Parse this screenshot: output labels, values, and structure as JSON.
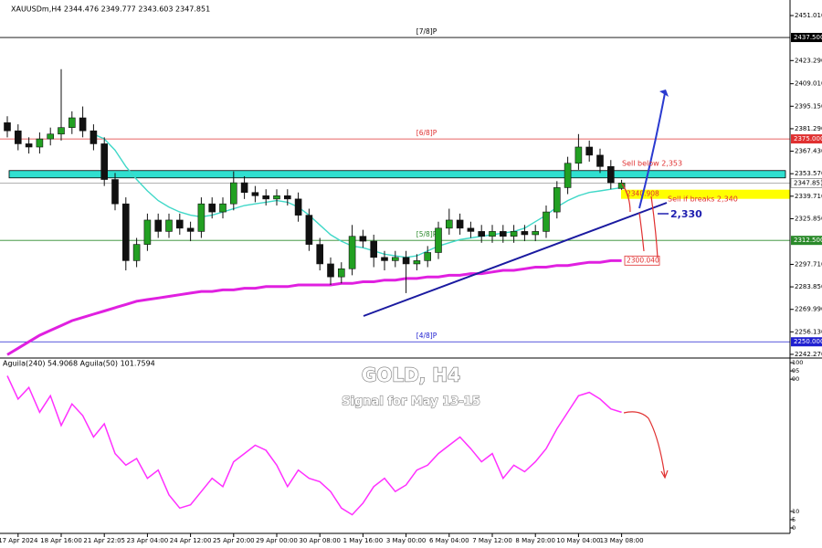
{
  "chart_data": {
    "type": "candlestick",
    "header": "XAUUSDm,H4  2344.476 2349.777 2343.603 2347.851",
    "title": "GOLD, H4",
    "subtitle": "Signal for May 13-15",
    "categories": [
      null,
      "17 Apr 2024",
      null,
      null,
      null,
      "18 Apr 16:00",
      null,
      null,
      null,
      "21 Apr 22:05",
      null,
      null,
      null,
      "23 Apr 04:00",
      null,
      null,
      null,
      "24 Apr 12:00",
      null,
      null,
      null,
      "25 Apr 20:00",
      null,
      null,
      null,
      "29 Apr 00:00",
      null,
      null,
      null,
      "30 Apr 08:00",
      null,
      null,
      null,
      "1 May 16:00",
      null,
      null,
      null,
      "3 May 00:00",
      null,
      null,
      null,
      "6 May 04:00",
      null,
      null,
      null,
      "7 May 12:00",
      null,
      null,
      null,
      "8 May 20:00",
      null,
      null,
      null,
      "10 May 04:00",
      null,
      null,
      null,
      "13 May 08:00"
    ],
    "open": [
      2385,
      2380,
      2372,
      2370,
      2375,
      2378,
      2382,
      2388,
      2380,
      2372,
      2350,
      2335,
      2300,
      2310,
      2325,
      2318,
      2325,
      2320,
      2318,
      2335,
      2330,
      2335,
      2348,
      2342,
      2340,
      2338,
      2340,
      2338,
      2328,
      2310,
      2298,
      2290,
      2295,
      2315,
      2312,
      2302,
      2300,
      2302,
      2298,
      2300,
      2305,
      2320,
      2325,
      2320,
      2318,
      2315,
      2318,
      2315,
      2318,
      2316,
      2318,
      2330,
      2345,
      2360,
      2370,
      2365,
      2358,
      2344.476
    ],
    "high": [
      2389,
      2384,
      2376,
      2379,
      2382,
      2418,
      2392,
      2395,
      2384,
      2376,
      2354,
      2339,
      2314,
      2329,
      2329,
      2329,
      2329,
      2324,
      2339,
      2339,
      2339,
      2355,
      2352,
      2346,
      2344,
      2344,
      2344,
      2342,
      2332,
      2314,
      2302,
      2299,
      2322,
      2319,
      2316,
      2306,
      2306,
      2306,
      2304,
      2309,
      2324,
      2332,
      2329,
      2324,
      2322,
      2322,
      2322,
      2322,
      2322,
      2322,
      2334,
      2349,
      2364,
      2378,
      2374,
      2369,
      2362,
      2349.777
    ],
    "low": [
      2376,
      2368,
      2366,
      2366,
      2371,
      2374,
      2378,
      2376,
      2368,
      2346,
      2331,
      2294,
      2296,
      2306,
      2314,
      2314,
      2316,
      2312,
      2314,
      2326,
      2326,
      2331,
      2338,
      2336,
      2334,
      2334,
      2334,
      2324,
      2306,
      2294,
      2285,
      2286,
      2291,
      2308,
      2296,
      2294,
      2296,
      2280,
      2294,
      2296,
      2301,
      2316,
      2316,
      2314,
      2311,
      2311,
      2311,
      2311,
      2312,
      2312,
      2314,
      2326,
      2341,
      2356,
      2361,
      2354,
      2344,
      2343.603
    ],
    "close": [
      2380,
      2372,
      2370,
      2375,
      2378,
      2382,
      2388,
      2380,
      2372,
      2350,
      2335,
      2300,
      2310,
      2325,
      2318,
      2325,
      2320,
      2318,
      2335,
      2330,
      2335,
      2348,
      2342,
      2340,
      2338,
      2340,
      2338,
      2328,
      2310,
      2298,
      2290,
      2295,
      2315,
      2312,
      2302,
      2300,
      2302,
      2298,
      2300,
      2305,
      2320,
      2325,
      2320,
      2318,
      2315,
      2318,
      2315,
      2318,
      2316,
      2318,
      2330,
      2345,
      2360,
      2370,
      2365,
      2358,
      2348,
      2347.851
    ],
    "up_color": "#22a022",
    "down_color": "#111111",
    "ma_lines": [
      {
        "color": "#40d8c8",
        "values": [
          null,
          null,
          null,
          null,
          null,
          null,
          null,
          null,
          2378,
          2375,
          2368,
          2358,
          2350,
          2343,
          2337,
          2333,
          2330,
          2328,
          2327,
          2328,
          2330,
          2332,
          2334,
          2335,
          2336,
          2337,
          2336,
          2333,
          2328,
          2322,
          2316,
          2312,
          2309,
          2308,
          2306,
          2304,
          2303,
          2302,
          2303,
          2306,
          2309,
          2311,
          2313,
          2314,
          2315,
          2316,
          2317,
          2318,
          2320,
          2324,
          2328,
          2333,
          2337,
          2340,
          2342,
          2343,
          2344,
          2345
        ]
      },
      {
        "color": "#e020e0",
        "values": [
          2242,
          2246,
          2250,
          2254,
          2257,
          2260,
          2263,
          2265,
          2267,
          2269,
          2271,
          2273,
          2275,
          2276,
          2277,
          2278,
          2279,
          2280,
          2281,
          2281,
          2282,
          2282,
          2283,
          2283,
          2284,
          2284,
          2284,
          2285,
          2285,
          2285,
          2285,
          2286,
          2286,
          2287,
          2287,
          2288,
          2288,
          2289,
          2289,
          2290,
          2290,
          2291,
          2291,
          2292,
          2292,
          2293,
          2294,
          2294,
          2295,
          2296,
          2296,
          2297,
          2297,
          2298,
          2299,
          2299,
          2300,
          2300
        ]
      }
    ],
    "ylim": [
      2240,
      2460.6
    ],
    "yticks": [
      {
        "value": 2451.01,
        "label": "2451.010"
      },
      {
        "value": 2423.29,
        "label": "2423.290"
      },
      {
        "value": 2409.01,
        "label": "2409.010"
      },
      {
        "value": 2395.15,
        "label": "2395.150"
      },
      {
        "value": 2381.29,
        "label": "2381.290"
      },
      {
        "value": 2367.43,
        "label": "2367.430"
      },
      {
        "value": 2353.57,
        "label": "2353.570"
      },
      {
        "value": 2339.71,
        "label": "2339.710"
      },
      {
        "value": 2325.85,
        "label": "2325.850"
      },
      {
        "value": 2297.71,
        "label": "2297.710"
      },
      {
        "value": 2283.85,
        "label": "2283.850"
      },
      {
        "value": 2269.99,
        "label": "2269.990"
      },
      {
        "value": 2256.13,
        "label": "2256.130"
      },
      {
        "value": 2242.27,
        "label": "2242.270"
      }
    ],
    "levels": [
      {
        "label": "[7/8]P",
        "value": 2437.5,
        "value_label": "2437.500",
        "color": "#000000"
      },
      {
        "label": "[6/8]P",
        "value": 2375,
        "value_label": "2375.000",
        "color": "#e03030"
      },
      {
        "label": "[5/8]P",
        "value": 2312.5,
        "value_label": "2312.500",
        "color": "#2a8a2a"
      },
      {
        "label": "[4/8]P",
        "value": 2250,
        "value_label": "2250.000",
        "color": "#2020d0"
      }
    ],
    "current_price": {
      "value": 2347.851,
      "label": "2347.851"
    },
    "support_zone": [
      2351,
      2355.5
    ],
    "price_marks": [
      {
        "value": 2340.908,
        "label": "2340.908",
        "fill": "#ffff00",
        "color": "#e03030"
      },
      {
        "value": 2300.04,
        "label": "2300.040",
        "fill": "#ffffff",
        "color": "#e03030"
      }
    ],
    "annotations": [
      {
        "text": "Sell below 2,353",
        "color": "#e03030"
      },
      {
        "text": "Sell if breaks 2,340",
        "color": "#e03030"
      },
      {
        "text": "2,330",
        "color": "#2020b0"
      }
    ],
    "indicator": {
      "type": "line",
      "legend": "Aguila(240) 54.9068 Aguila(50) 101.7594",
      "color": "#ff30ff",
      "values": [
        92,
        78,
        85,
        70,
        80,
        62,
        75,
        68,
        55,
        63,
        45,
        38,
        42,
        30,
        35,
        20,
        12,
        14,
        22,
        30,
        25,
        40,
        45,
        50,
        47,
        38,
        25,
        35,
        30,
        28,
        22,
        12,
        8,
        15,
        25,
        30,
        22,
        26,
        35,
        38,
        45,
        50,
        55,
        48,
        40,
        45,
        30,
        38,
        34,
        40,
        48,
        60,
        70,
        80,
        82,
        78,
        72,
        70
      ],
      "ylim": [
        -3.3,
        102.8
      ],
      "yticks": [
        100,
        95,
        90,
        10,
        5,
        0
      ]
    }
  }
}
